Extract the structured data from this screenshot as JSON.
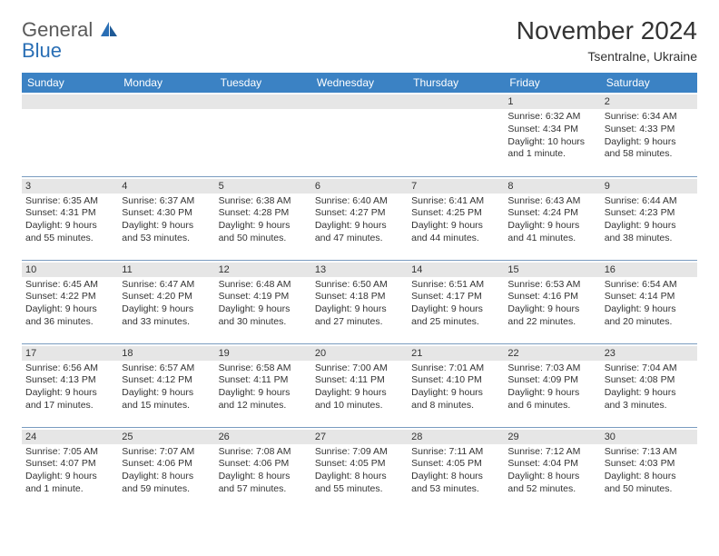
{
  "logo": {
    "text1": "General",
    "text2": "Blue"
  },
  "title": "November 2024",
  "location": "Tsentralne, Ukraine",
  "header_bg": "#3b82c4",
  "date_bg": "#e6e6e6",
  "border_color": "#7a9cc0",
  "weekdays": [
    "Sunday",
    "Monday",
    "Tuesday",
    "Wednesday",
    "Thursday",
    "Friday",
    "Saturday"
  ],
  "weeks": [
    [
      null,
      null,
      null,
      null,
      null,
      {
        "d": "1",
        "sr": "Sunrise: 6:32 AM",
        "ss": "Sunset: 4:34 PM",
        "dl1": "Daylight: 10 hours",
        "dl2": "and 1 minute."
      },
      {
        "d": "2",
        "sr": "Sunrise: 6:34 AM",
        "ss": "Sunset: 4:33 PM",
        "dl1": "Daylight: 9 hours",
        "dl2": "and 58 minutes."
      }
    ],
    [
      {
        "d": "3",
        "sr": "Sunrise: 6:35 AM",
        "ss": "Sunset: 4:31 PM",
        "dl1": "Daylight: 9 hours",
        "dl2": "and 55 minutes."
      },
      {
        "d": "4",
        "sr": "Sunrise: 6:37 AM",
        "ss": "Sunset: 4:30 PM",
        "dl1": "Daylight: 9 hours",
        "dl2": "and 53 minutes."
      },
      {
        "d": "5",
        "sr": "Sunrise: 6:38 AM",
        "ss": "Sunset: 4:28 PM",
        "dl1": "Daylight: 9 hours",
        "dl2": "and 50 minutes."
      },
      {
        "d": "6",
        "sr": "Sunrise: 6:40 AM",
        "ss": "Sunset: 4:27 PM",
        "dl1": "Daylight: 9 hours",
        "dl2": "and 47 minutes."
      },
      {
        "d": "7",
        "sr": "Sunrise: 6:41 AM",
        "ss": "Sunset: 4:25 PM",
        "dl1": "Daylight: 9 hours",
        "dl2": "and 44 minutes."
      },
      {
        "d": "8",
        "sr": "Sunrise: 6:43 AM",
        "ss": "Sunset: 4:24 PM",
        "dl1": "Daylight: 9 hours",
        "dl2": "and 41 minutes."
      },
      {
        "d": "9",
        "sr": "Sunrise: 6:44 AM",
        "ss": "Sunset: 4:23 PM",
        "dl1": "Daylight: 9 hours",
        "dl2": "and 38 minutes."
      }
    ],
    [
      {
        "d": "10",
        "sr": "Sunrise: 6:45 AM",
        "ss": "Sunset: 4:22 PM",
        "dl1": "Daylight: 9 hours",
        "dl2": "and 36 minutes."
      },
      {
        "d": "11",
        "sr": "Sunrise: 6:47 AM",
        "ss": "Sunset: 4:20 PM",
        "dl1": "Daylight: 9 hours",
        "dl2": "and 33 minutes."
      },
      {
        "d": "12",
        "sr": "Sunrise: 6:48 AM",
        "ss": "Sunset: 4:19 PM",
        "dl1": "Daylight: 9 hours",
        "dl2": "and 30 minutes."
      },
      {
        "d": "13",
        "sr": "Sunrise: 6:50 AM",
        "ss": "Sunset: 4:18 PM",
        "dl1": "Daylight: 9 hours",
        "dl2": "and 27 minutes."
      },
      {
        "d": "14",
        "sr": "Sunrise: 6:51 AM",
        "ss": "Sunset: 4:17 PM",
        "dl1": "Daylight: 9 hours",
        "dl2": "and 25 minutes."
      },
      {
        "d": "15",
        "sr": "Sunrise: 6:53 AM",
        "ss": "Sunset: 4:16 PM",
        "dl1": "Daylight: 9 hours",
        "dl2": "and 22 minutes."
      },
      {
        "d": "16",
        "sr": "Sunrise: 6:54 AM",
        "ss": "Sunset: 4:14 PM",
        "dl1": "Daylight: 9 hours",
        "dl2": "and 20 minutes."
      }
    ],
    [
      {
        "d": "17",
        "sr": "Sunrise: 6:56 AM",
        "ss": "Sunset: 4:13 PM",
        "dl1": "Daylight: 9 hours",
        "dl2": "and 17 minutes."
      },
      {
        "d": "18",
        "sr": "Sunrise: 6:57 AM",
        "ss": "Sunset: 4:12 PM",
        "dl1": "Daylight: 9 hours",
        "dl2": "and 15 minutes."
      },
      {
        "d": "19",
        "sr": "Sunrise: 6:58 AM",
        "ss": "Sunset: 4:11 PM",
        "dl1": "Daylight: 9 hours",
        "dl2": "and 12 minutes."
      },
      {
        "d": "20",
        "sr": "Sunrise: 7:00 AM",
        "ss": "Sunset: 4:11 PM",
        "dl1": "Daylight: 9 hours",
        "dl2": "and 10 minutes."
      },
      {
        "d": "21",
        "sr": "Sunrise: 7:01 AM",
        "ss": "Sunset: 4:10 PM",
        "dl1": "Daylight: 9 hours",
        "dl2": "and 8 minutes."
      },
      {
        "d": "22",
        "sr": "Sunrise: 7:03 AM",
        "ss": "Sunset: 4:09 PM",
        "dl1": "Daylight: 9 hours",
        "dl2": "and 6 minutes."
      },
      {
        "d": "23",
        "sr": "Sunrise: 7:04 AM",
        "ss": "Sunset: 4:08 PM",
        "dl1": "Daylight: 9 hours",
        "dl2": "and 3 minutes."
      }
    ],
    [
      {
        "d": "24",
        "sr": "Sunrise: 7:05 AM",
        "ss": "Sunset: 4:07 PM",
        "dl1": "Daylight: 9 hours",
        "dl2": "and 1 minute."
      },
      {
        "d": "25",
        "sr": "Sunrise: 7:07 AM",
        "ss": "Sunset: 4:06 PM",
        "dl1": "Daylight: 8 hours",
        "dl2": "and 59 minutes."
      },
      {
        "d": "26",
        "sr": "Sunrise: 7:08 AM",
        "ss": "Sunset: 4:06 PM",
        "dl1": "Daylight: 8 hours",
        "dl2": "and 57 minutes."
      },
      {
        "d": "27",
        "sr": "Sunrise: 7:09 AM",
        "ss": "Sunset: 4:05 PM",
        "dl1": "Daylight: 8 hours",
        "dl2": "and 55 minutes."
      },
      {
        "d": "28",
        "sr": "Sunrise: 7:11 AM",
        "ss": "Sunset: 4:05 PM",
        "dl1": "Daylight: 8 hours",
        "dl2": "and 53 minutes."
      },
      {
        "d": "29",
        "sr": "Sunrise: 7:12 AM",
        "ss": "Sunset: 4:04 PM",
        "dl1": "Daylight: 8 hours",
        "dl2": "and 52 minutes."
      },
      {
        "d": "30",
        "sr": "Sunrise: 7:13 AM",
        "ss": "Sunset: 4:03 PM",
        "dl1": "Daylight: 8 hours",
        "dl2": "and 50 minutes."
      }
    ]
  ]
}
